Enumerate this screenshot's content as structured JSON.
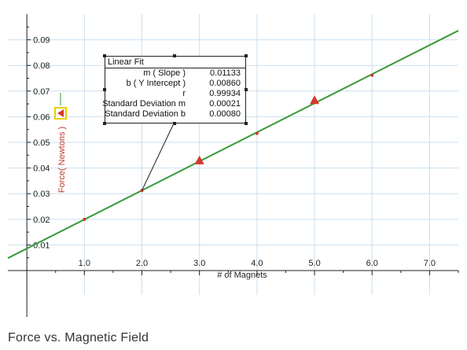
{
  "chart_data": {
    "type": "scatter",
    "xlabel": "# of Magnets",
    "ylabel": "Force( Newtons )",
    "x_ticks": [
      "1.0",
      "2.0",
      "3.0",
      "4.0",
      "5.0",
      "6.0",
      "7.0"
    ],
    "y_ticks": [
      "0.01",
      "0.02",
      "0.03",
      "0.04",
      "0.05",
      "0.06",
      "0.07",
      "0.08",
      "0.09"
    ],
    "xlim": [
      -0.33,
      7.5
    ],
    "ylim": [
      -0.0095,
      0.1
    ],
    "grid": true,
    "series": [
      {
        "marker": "triangle",
        "color": "#d2392b",
        "x": [
          1,
          2,
          3,
          4,
          5,
          6
        ],
        "y": [
          0.02,
          0.0312,
          0.043,
          0.0535,
          0.0665,
          0.0762
        ]
      }
    ],
    "fit": {
      "type": "linear",
      "color": "#3a9a3a",
      "slope": 0.01133,
      "intercept": 0.0086
    },
    "fit_box": {
      "title": "Linear Fit",
      "rows": [
        {
          "name": "m ( Slope )",
          "value": "0.01133"
        },
        {
          "name": "b ( Y Intercept )",
          "value": "0.00860"
        },
        {
          "name": "r",
          "value": "0.99934"
        },
        {
          "name": "Standard Deviation m",
          "value": "0.00021"
        },
        {
          "name": "Standard Deviation b",
          "value": "0.00080"
        }
      ]
    },
    "caption": "Force vs. Magnetic Field"
  },
  "colors": {
    "grid": "#c9dff0",
    "axis": "#222222",
    "marker": "#d2392b",
    "fit_line": "#3a9a3a",
    "legend_box": "#e8d000"
  }
}
